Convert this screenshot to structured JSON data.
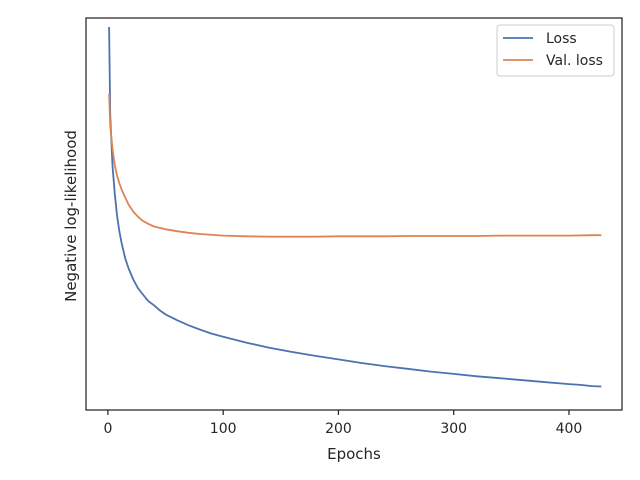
{
  "chart_data": {
    "type": "line",
    "title": "",
    "xlabel": "Epochs",
    "ylabel": "Negative log-likelihood",
    "xlim": [
      -19,
      446
    ],
    "ylim": [
      0,
      1
    ],
    "x_ticks": [
      0,
      100,
      200,
      300,
      400
    ],
    "x_tick_labels": [
      "0",
      "100",
      "200",
      "300",
      "400"
    ],
    "y_tick_labels": [],
    "grid": false,
    "legend_position": "top-right",
    "series": [
      {
        "name": "Loss",
        "color": "#4c72b0",
        "x": [
          1,
          2,
          4,
          6,
          8,
          10,
          12,
          15,
          18,
          22,
          26,
          30,
          35,
          40,
          45,
          50,
          60,
          70,
          80,
          90,
          100,
          120,
          140,
          160,
          180,
          200,
          220,
          240,
          260,
          280,
          300,
          320,
          340,
          360,
          380,
          400,
          410,
          420,
          428
        ],
        "y": [
          0.977,
          0.755,
          0.623,
          0.551,
          0.495,
          0.455,
          0.425,
          0.387,
          0.361,
          0.333,
          0.311,
          0.296,
          0.278,
          0.267,
          0.254,
          0.244,
          0.229,
          0.216,
          0.205,
          0.195,
          0.187,
          0.172,
          0.159,
          0.148,
          0.138,
          0.129,
          0.12,
          0.112,
          0.105,
          0.098,
          0.092,
          0.086,
          0.081,
          0.076,
          0.071,
          0.066,
          0.064,
          0.061,
          0.06
        ]
      },
      {
        "name": "Val. loss",
        "color": "#dd8452",
        "x": [
          1,
          2,
          4,
          6,
          8,
          10,
          12,
          15,
          18,
          22,
          26,
          30,
          35,
          40,
          50,
          60,
          70,
          80,
          100,
          120,
          140,
          160,
          180,
          200,
          220,
          240,
          260,
          280,
          300,
          320,
          340,
          360,
          380,
          400,
          420,
          428
        ],
        "y": [
          0.807,
          0.726,
          0.666,
          0.624,
          0.598,
          0.578,
          0.562,
          0.542,
          0.524,
          0.506,
          0.493,
          0.483,
          0.475,
          0.468,
          0.461,
          0.456,
          0.452,
          0.449,
          0.445,
          0.443,
          0.442,
          0.442,
          0.442,
          0.443,
          0.443,
          0.443,
          0.444,
          0.444,
          0.444,
          0.444,
          0.445,
          0.445,
          0.445,
          0.445,
          0.446,
          0.446
        ]
      }
    ]
  }
}
